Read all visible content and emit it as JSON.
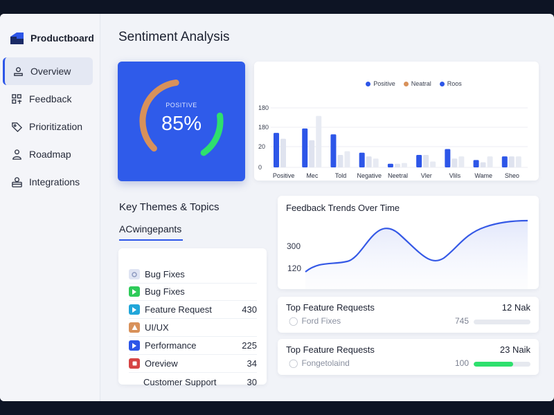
{
  "app": {
    "name": "Productboard",
    "brand_color": "#2d56e8"
  },
  "sidebar": {
    "items": [
      {
        "label": "Overview",
        "icon": "user-icon",
        "active": true
      },
      {
        "label": "Feedback",
        "icon": "grid-icon",
        "active": false
      },
      {
        "label": "Prioritization",
        "icon": "tag-icon",
        "active": false
      },
      {
        "label": "Roadmap",
        "icon": "person-icon",
        "active": false
      },
      {
        "label": "Integrations",
        "icon": "stack-icon",
        "active": false
      }
    ]
  },
  "page": {
    "title": "Sentiment Analysis"
  },
  "gauge": {
    "label": "POSITIVE",
    "value": "85%",
    "fraction": 0.85,
    "colors": {
      "bg": "#2f5bea",
      "orange": "#d8915a",
      "green": "#2ee06d"
    }
  },
  "sentiment_chart": {
    "legend": [
      {
        "label": "Positive",
        "color": "#2d56e8"
      },
      {
        "label": "Neatral",
        "color": "#d8915a"
      },
      {
        "label": "Roos",
        "color": "#2d56e8"
      }
    ],
    "y_ticks": [
      "180",
      "180",
      "20",
      "0"
    ]
  },
  "chart_data": {
    "type": "bar",
    "categories": [
      "Positive",
      "Mec",
      "Told",
      "Negative",
      "Neetral",
      "Vler",
      "Vlils",
      "Wame",
      "Sheo"
    ],
    "series": [
      {
        "name": "Positive",
        "values": [
          47,
          53,
          45,
          20,
          5,
          17,
          25,
          10,
          15
        ]
      },
      {
        "name": "Neatral",
        "values": [
          39,
          37,
          17,
          15,
          5,
          17,
          12,
          7,
          15
        ]
      },
      {
        "name": "Roos",
        "values": [
          0,
          70,
          22,
          12,
          6,
          8,
          15,
          15,
          15
        ]
      }
    ],
    "y_ticks": [
      "180",
      "180",
      "20",
      "0"
    ],
    "legend_position": "top-center"
  },
  "themes": {
    "title": "Key Themes & Topics",
    "tab": "ACwingepants",
    "rows": [
      {
        "label": "Bug Fixes",
        "count": "",
        "icon": "settings-icon",
        "color": "#d6dcef"
      },
      {
        "label": "Bug Fixes",
        "count": "",
        "icon": "play-icon",
        "color": "#2ecb59"
      },
      {
        "label": "Feature Request",
        "count": "430",
        "icon": "play-icon",
        "color": "#21a6d9"
      },
      {
        "label": "UI/UX",
        "count": "",
        "icon": "warning-icon",
        "color": "#d8915a"
      },
      {
        "label": "Performance",
        "count": "225",
        "icon": "play-icon",
        "color": "#2d56e8"
      },
      {
        "label": "Oreview",
        "count": "34",
        "icon": "record-icon",
        "color": "#d64444"
      },
      {
        "label": "Customer Support",
        "count": "30",
        "icon": "",
        "color": ""
      }
    ]
  },
  "trends": {
    "title": "Feedback Trends Over Time",
    "y_labels": [
      "300",
      "120"
    ],
    "line_color": "#3559e6"
  },
  "requests": [
    {
      "title": "Top Feature Requests",
      "count": "12 Nak",
      "sub": "Ford Fixes",
      "value": "745",
      "fill": 0,
      "fill_color": "#cfd5e0"
    },
    {
      "title": "Top Feature Requests",
      "count": "23 Naik",
      "sub": "Fongetolaind",
      "value": "100",
      "fill": 0.7,
      "fill_color": "#2ee06d"
    }
  ]
}
